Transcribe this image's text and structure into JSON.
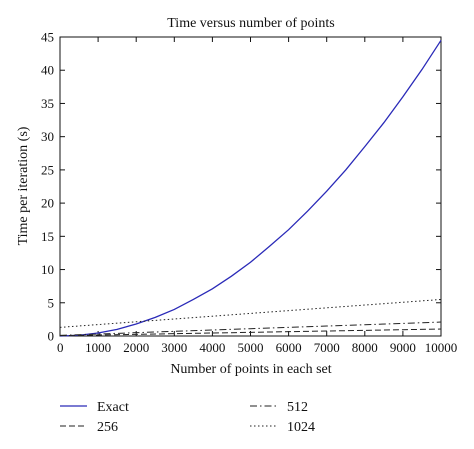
{
  "chart_data": {
    "type": "line",
    "title": "Time versus number of points",
    "xlabel": "Number of points in each set",
    "ylabel": "Time per iteration (s)",
    "xlim": [
      0,
      10000
    ],
    "ylim": [
      0,
      45
    ],
    "x_ticks": [
      0,
      1000,
      2000,
      3000,
      4000,
      5000,
      6000,
      7000,
      8000,
      9000,
      10000
    ],
    "y_ticks": [
      0,
      5,
      10,
      15,
      20,
      25,
      30,
      35,
      40,
      45
    ],
    "x_tick_labels": [
      "0",
      "1000",
      "2000",
      "3000",
      "4000",
      "5000",
      "6000",
      "7000",
      "8000",
      "9000",
      "10000"
    ],
    "y_tick_labels": [
      "0",
      "5",
      "10",
      "15",
      "20",
      "25",
      "30",
      "35",
      "40",
      "45"
    ],
    "grid": false,
    "legend_position": "bottom",
    "series": [
      {
        "name": "Exact",
        "color": "#2a2ab8",
        "style": "solid",
        "x": [
          0,
          500,
          1000,
          1500,
          2000,
          2500,
          3000,
          3500,
          4000,
          4500,
          5000,
          5500,
          6000,
          6500,
          7000,
          7500,
          8000,
          8500,
          9000,
          9500,
          10000
        ],
        "y": [
          0,
          0.11,
          0.45,
          1.0,
          1.8,
          2.8,
          4.0,
          5.5,
          7.1,
          9.0,
          11.1,
          13.5,
          16.0,
          18.8,
          21.8,
          25.0,
          28.5,
          32.1,
          36.0,
          40.1,
          44.5
        ]
      },
      {
        "name": "256",
        "color": "#222222",
        "style": "dashed",
        "x": [
          0,
          1000,
          2000,
          3000,
          4000,
          5000,
          6000,
          7000,
          8000,
          9000,
          10000
        ],
        "y": [
          0.05,
          0.15,
          0.25,
          0.35,
          0.45,
          0.55,
          0.65,
          0.75,
          0.85,
          0.95,
          1.05
        ]
      },
      {
        "name": "512",
        "color": "#222222",
        "style": "dashdot",
        "x": [
          0,
          1000,
          2000,
          3000,
          4000,
          5000,
          6000,
          7000,
          8000,
          9000,
          10000
        ],
        "y": [
          0.1,
          0.3,
          0.5,
          0.7,
          0.9,
          1.1,
          1.3,
          1.5,
          1.7,
          1.9,
          2.1
        ]
      },
      {
        "name": "1024",
        "color": "#222222",
        "style": "dotted",
        "x": [
          0,
          1000,
          2000,
          3000,
          4000,
          5000,
          6000,
          7000,
          8000,
          9000,
          10000
        ],
        "y": [
          1.3,
          1.72,
          2.14,
          2.56,
          2.98,
          3.4,
          3.82,
          4.24,
          4.66,
          5.08,
          5.5
        ]
      }
    ]
  }
}
